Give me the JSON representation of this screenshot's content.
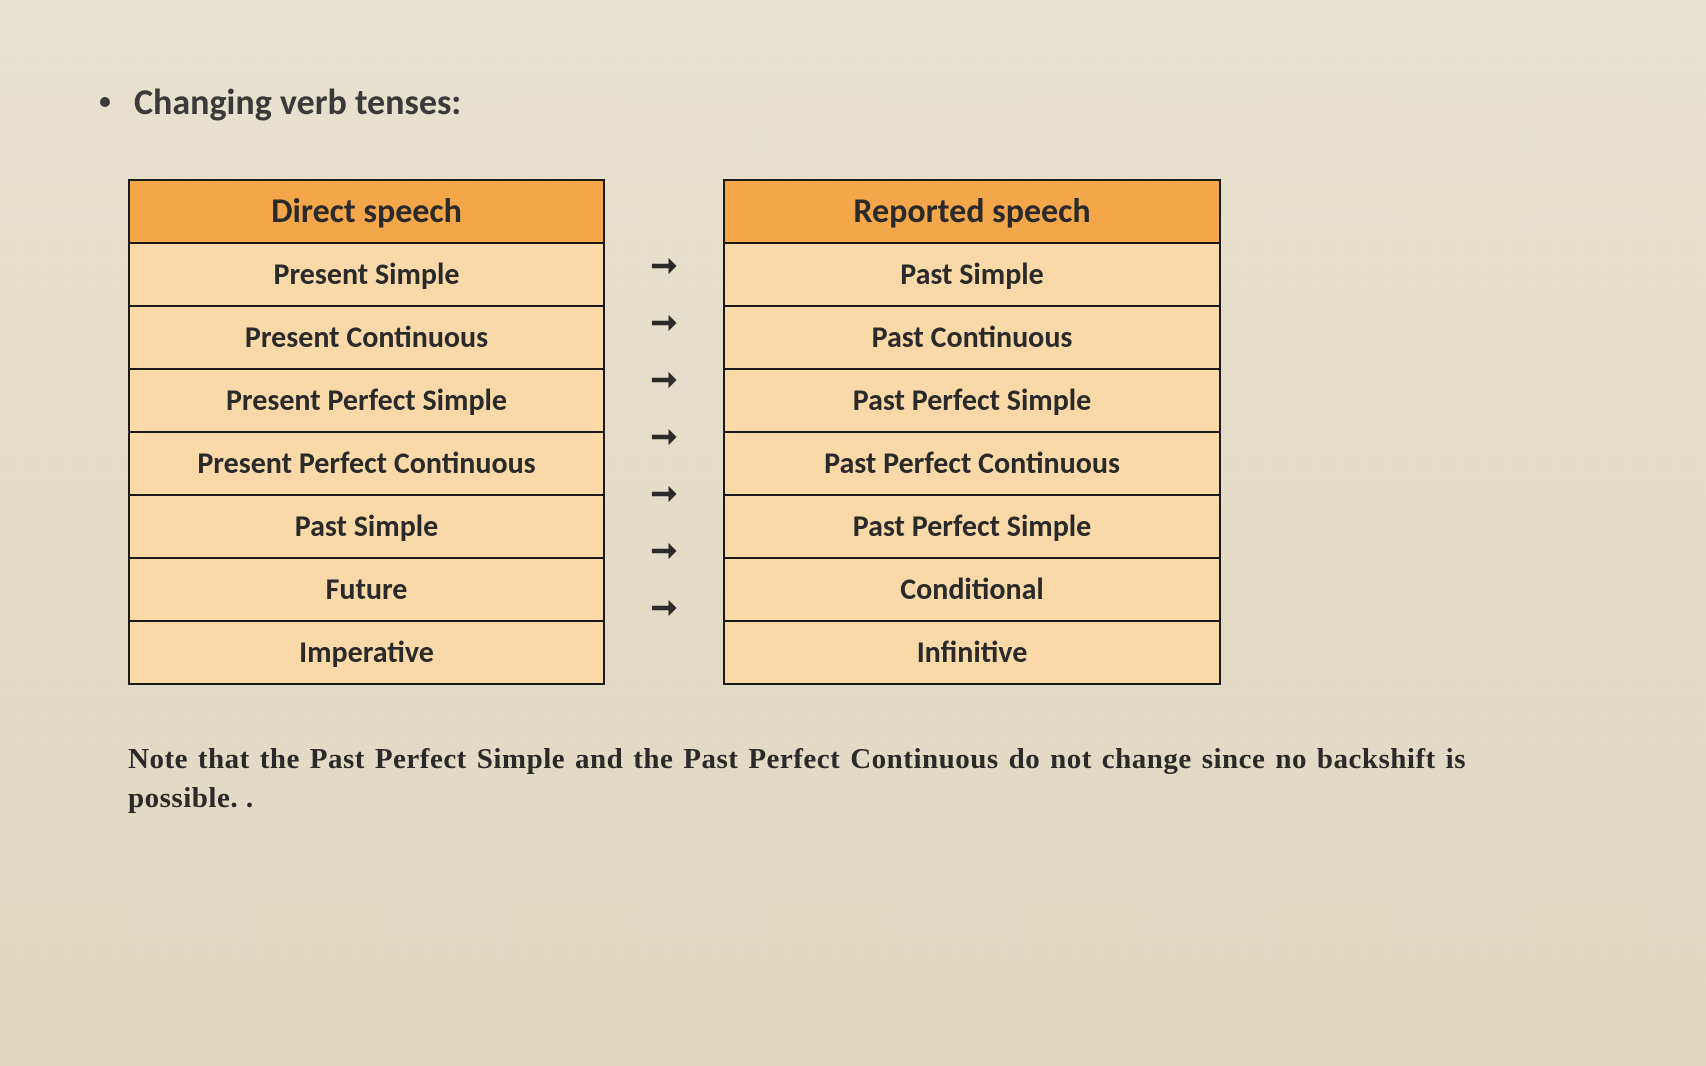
{
  "heading": "Changing verb tenses:",
  "left_table": {
    "header": "Direct speech",
    "rows": [
      "Present Simple",
      "Present Continuous",
      "Present Perfect Simple",
      "Present Perfect Continuous",
      "Past Simple",
      "Future",
      "Imperative"
    ]
  },
  "right_table": {
    "header": "Reported speech",
    "rows": [
      "Past Simple",
      "Past Continuous",
      "Past Perfect Simple",
      "Past Perfect Continuous",
      "Past Perfect Simple",
      "Conditional",
      "Infinitive"
    ]
  },
  "arrow_symbol": "➞",
  "note": "Note that the Past Perfect Simple and the Past Perfect Continuous do not change since no backshift is possible. .",
  "colors": {
    "background": "#e5ddc8",
    "header_bg": "#f4a64a",
    "cell_bg": "#fad9a8",
    "border": "#1a1a1a",
    "text": "#2a2a2a"
  }
}
